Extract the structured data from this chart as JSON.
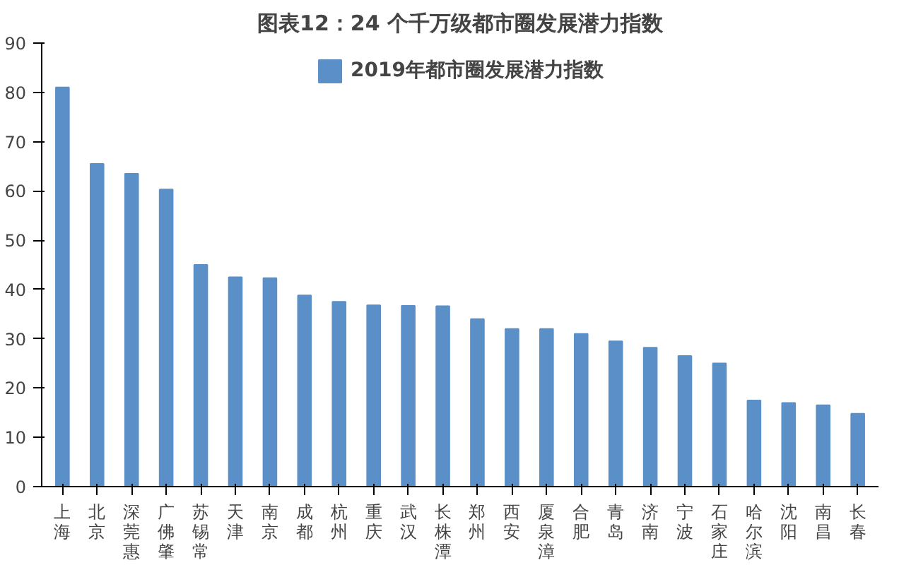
{
  "chart_data": {
    "type": "bar",
    "title": "图表12：24 个千万级都市圈发展潜力指数",
    "categories": [
      "上海",
      "北京",
      "深莞惠",
      "广佛肇",
      "苏锡常",
      "天津",
      "南京",
      "成都",
      "杭州",
      "重庆",
      "武汉",
      "长株潭",
      "郑州",
      "西安",
      "厦泉漳",
      "合肥",
      "青岛",
      "济南",
      "宁波",
      "石家庄",
      "哈尔滨",
      "沈阳",
      "南昌",
      "长春"
    ],
    "series": [
      {
        "name": "2019年都市圈发展潜力指数",
        "color": "#5b8fc7",
        "values": [
          81,
          65.5,
          63.5,
          60.3,
          45,
          42.5,
          42.3,
          38.8,
          37.5,
          36.8,
          36.7,
          36.6,
          34,
          32,
          32,
          31,
          29.5,
          28.2,
          26.5,
          25,
          17.5,
          17,
          16.5,
          14.8
        ]
      }
    ],
    "ylim": [
      0,
      90
    ],
    "yticks": [
      0,
      10,
      20,
      30,
      40,
      50,
      60,
      70,
      80,
      90
    ],
    "grid": false,
    "legend": "top"
  }
}
